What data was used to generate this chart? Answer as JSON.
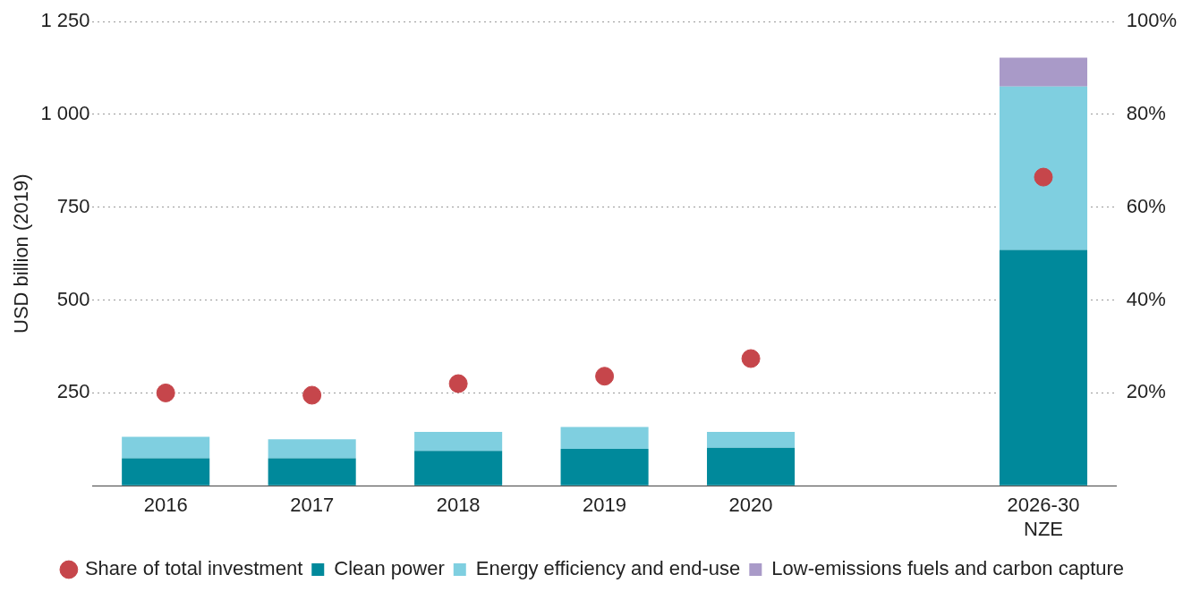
{
  "chart_data": {
    "type": "bar",
    "ylabel": "USD billion (2019)",
    "categories": [
      "2016",
      "2017",
      "2018",
      "2019",
      "2020",
      null,
      "2026-30\nNZE"
    ],
    "stacked": true,
    "series": [
      {
        "name": "Clean power",
        "color": "#00899b",
        "values": [
          74,
          74,
          94,
          99,
          102,
          null,
          635
        ]
      },
      {
        "name": "Energy efficiency and end-use",
        "color": "#7fcfe0",
        "values": [
          58,
          51,
          51,
          59,
          43,
          null,
          440
        ]
      },
      {
        "name": "Low-emissions fuels and carbon capture",
        "color": "#a99ac8",
        "values": [
          null,
          null,
          null,
          null,
          null,
          null,
          78
        ]
      },
      {
        "name": "Share of total investment",
        "type": "scatter",
        "axis": "y2",
        "color": "#c6464b",
        "values": [
          20,
          19.5,
          22,
          23.6,
          27.4,
          null,
          66.5
        ]
      }
    ],
    "ylim": [
      0,
      1250
    ],
    "yticks": [
      {
        "value": 0,
        "label": null
      },
      250,
      500,
      750,
      {
        "value": 1000,
        "label": "1 000"
      },
      {
        "value": 1250,
        "label": "1 250"
      }
    ],
    "y2lim": [
      0,
      100
    ],
    "y2ticks": [
      {
        "value": 0,
        "label": null
      },
      {
        "value": 20,
        "label": "20%"
      },
      {
        "value": 40,
        "label": "40%"
      },
      {
        "value": 60,
        "label": "60%"
      },
      {
        "value": 80,
        "label": "80%"
      },
      {
        "value": 100,
        "label": "100%"
      }
    ],
    "grid": "y",
    "legend": "bottom",
    "marker": "circle"
  }
}
